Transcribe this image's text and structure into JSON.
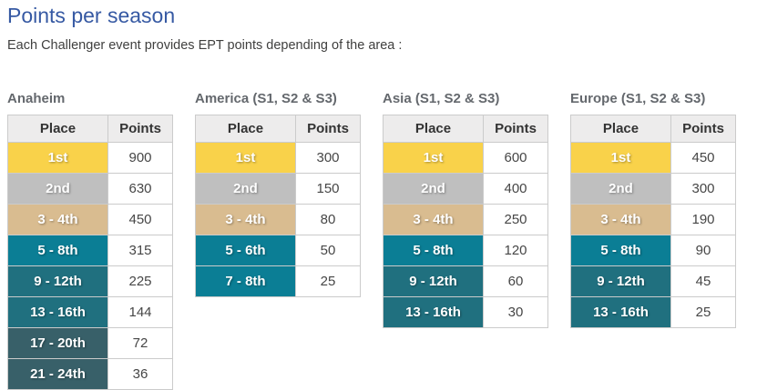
{
  "page": {
    "title": "Points per season",
    "subtitle": "Each Challenger event provides EPT points depending of the area :"
  },
  "columns": {
    "place": "Place",
    "points": "Points"
  },
  "colors": {
    "gold": "#f9d24a",
    "silver": "#bfbfbf",
    "bronze": "#d9bc90",
    "teal": "#0b7e95",
    "teal_dark": "#20707f",
    "slate": "#386069",
    "header_bg": "#edecec",
    "title_blue": "#3659a3",
    "section_gray": "#64686d"
  },
  "tables": [
    {
      "title": "Anaheim",
      "rows": [
        {
          "place": "1st",
          "points": "900",
          "tier": "gold"
        },
        {
          "place": "2nd",
          "points": "630",
          "tier": "silver"
        },
        {
          "place": "3 - 4th",
          "points": "450",
          "tier": "bronze"
        },
        {
          "place": "5 - 8th",
          "points": "315",
          "tier": "teal"
        },
        {
          "place": "9 - 12th",
          "points": "225",
          "tier": "teal_dark"
        },
        {
          "place": "13 - 16th",
          "points": "144",
          "tier": "teal_dark"
        },
        {
          "place": "17 - 20th",
          "points": "72",
          "tier": "slate"
        },
        {
          "place": "21 - 24th",
          "points": "36",
          "tier": "slate"
        }
      ]
    },
    {
      "title": "America (S1, S2 & S3)",
      "rows": [
        {
          "place": "1st",
          "points": "300",
          "tier": "gold"
        },
        {
          "place": "2nd",
          "points": "150",
          "tier": "silver"
        },
        {
          "place": "3 - 4th",
          "points": "80",
          "tier": "bronze"
        },
        {
          "place": "5 - 6th",
          "points": "50",
          "tier": "teal"
        },
        {
          "place": "7 - 8th",
          "points": "25",
          "tier": "teal"
        }
      ]
    },
    {
      "title": "Asia (S1, S2 & S3)",
      "rows": [
        {
          "place": "1st",
          "points": "600",
          "tier": "gold"
        },
        {
          "place": "2nd",
          "points": "400",
          "tier": "silver"
        },
        {
          "place": "3 - 4th",
          "points": "250",
          "tier": "bronze"
        },
        {
          "place": "5 - 8th",
          "points": "120",
          "tier": "teal"
        },
        {
          "place": "9 - 12th",
          "points": "60",
          "tier": "teal_dark"
        },
        {
          "place": "13 - 16th",
          "points": "30",
          "tier": "teal_dark"
        }
      ]
    },
    {
      "title": "Europe (S1, S2 & S3)",
      "rows": [
        {
          "place": "1st",
          "points": "450",
          "tier": "gold"
        },
        {
          "place": "2nd",
          "points": "300",
          "tier": "silver"
        },
        {
          "place": "3 - 4th",
          "points": "190",
          "tier": "bronze"
        },
        {
          "place": "5 - 8th",
          "points": "90",
          "tier": "teal"
        },
        {
          "place": "9 - 12th",
          "points": "45",
          "tier": "teal_dark"
        },
        {
          "place": "13 - 16th",
          "points": "25",
          "tier": "teal_dark"
        }
      ]
    }
  ]
}
